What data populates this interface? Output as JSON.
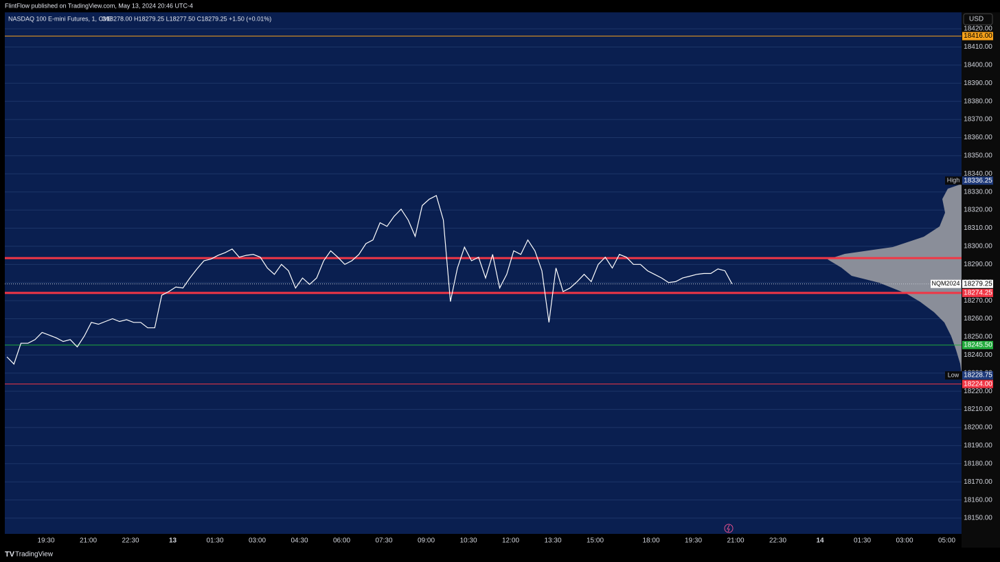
{
  "published": "FlintFlow published on TradingView.com, May 13, 2024 20:46 UTC-4",
  "brand": "TradingView",
  "chart_data": {
    "type": "line",
    "title": "NASDAQ 100 E-mini Futures, 1, CME",
    "ohlc": "O18278.00 H18279.25 L18277.50 C18279.25 +1.50 (+0.01%)",
    "currency": "USD",
    "x": [
      "18:00",
      "18:15",
      "18:30",
      "18:45",
      "19:00",
      "19:15",
      "19:30",
      "19:45",
      "20:00",
      "20:15",
      "20:30",
      "20:45",
      "21:00",
      "21:15",
      "21:30",
      "21:45",
      "22:00",
      "22:15",
      "22:30",
      "22:45",
      "23:00",
      "23:15",
      "23:30",
      "23:45",
      "00:00",
      "00:15",
      "00:30",
      "00:45",
      "01:00",
      "01:15",
      "01:30",
      "01:45",
      "02:00",
      "02:15",
      "02:30",
      "02:45",
      "03:00",
      "03:15",
      "03:30",
      "03:45",
      "04:00",
      "04:15",
      "04:30",
      "04:45",
      "05:00",
      "05:15",
      "05:30",
      "05:45",
      "06:00",
      "06:15",
      "06:30",
      "06:45",
      "07:00",
      "07:15",
      "07:30",
      "07:45",
      "08:00",
      "08:15",
      "08:30",
      "08:45",
      "09:00",
      "09:15",
      "09:30",
      "09:45",
      "10:00",
      "10:15",
      "10:30",
      "10:45",
      "11:00",
      "11:15",
      "11:30",
      "11:45",
      "12:00",
      "12:15",
      "12:30",
      "12:45",
      "13:00",
      "13:15",
      "13:30",
      "13:45",
      "14:00",
      "14:15",
      "14:30",
      "14:45",
      "15:00",
      "15:15",
      "15:30",
      "15:45",
      "16:00",
      "16:15",
      "16:30",
      "16:45",
      "18:00",
      "18:15",
      "18:30",
      "18:45",
      "19:00",
      "19:15",
      "19:30",
      "19:45",
      "20:00",
      "20:15",
      "20:30",
      "20:45"
    ],
    "series": [
      {
        "name": "NQM2024",
        "color": "#ffffff",
        "values": [
          18239,
          18235,
          18246.5,
          18246.5,
          18248.5,
          18252.5,
          18251,
          18249.5,
          18247.5,
          18248.5,
          18244.5,
          18250.5,
          18258,
          18257,
          18258.5,
          18260,
          18258.5,
          18259.5,
          18258,
          18258,
          18255,
          18255,
          18273,
          18275,
          18277.5,
          18277,
          18282.5,
          18287.5,
          18292,
          18293,
          18295,
          18296.5,
          18298.5,
          18294,
          18295,
          18295.5,
          18294,
          18288,
          18284.5,
          18290,
          18286.5,
          18277,
          18282.5,
          18279,
          18282.5,
          18292,
          18297.5,
          18294,
          18290,
          18292,
          18295.5,
          18301.5,
          18303.5,
          18313,
          18311,
          18316.5,
          18320.5,
          18314.5,
          18305.5,
          18322.5,
          18326,
          18328,
          18314.5,
          18269.5,
          18288,
          18299.5,
          18292,
          18294,
          18282.5,
          18295.5,
          18277,
          18284.5,
          18297.5,
          18295.5,
          18303.5,
          18297.5,
          18286.5,
          18258,
          18288,
          18275,
          18277,
          18280.5,
          18284.5,
          18280.5,
          18290,
          18294,
          18288,
          18295.5,
          18294,
          18290,
          18290,
          18286.5,
          18284.5,
          18282.5,
          18280,
          18280.5,
          18282.5,
          18283.5,
          18284.5,
          18285,
          18285,
          18287.5,
          18286.5,
          18279.25
        ]
      }
    ],
    "xticks": [
      "19:30",
      "21:00",
      "22:30",
      "13",
      "01:30",
      "03:00",
      "04:30",
      "06:00",
      "07:30",
      "09:00",
      "10:30",
      "12:00",
      "13:30",
      "15:00",
      "18:00",
      "19:30",
      "21:00",
      "22:30",
      "14",
      "01:30",
      "03:00",
      "05:00"
    ],
    "ylim": [
      18141.3,
      18429.1
    ],
    "yticks": [
      {
        "value": 18150,
        "label": "18150.00"
      },
      {
        "value": 18160,
        "label": "18160.00"
      },
      {
        "value": 18170,
        "label": "18170.00"
      },
      {
        "value": 18180,
        "label": "18180.00"
      },
      {
        "value": 18190,
        "label": "18190.00"
      },
      {
        "value": 18200,
        "label": "18200.00"
      },
      {
        "value": 18210,
        "label": "18210.00"
      },
      {
        "value": 18220,
        "label": "18220.00"
      },
      {
        "value": 18230,
        "label": "18230.00"
      },
      {
        "value": 18240,
        "label": "18240.00"
      },
      {
        "value": 18250,
        "label": "18250.00"
      },
      {
        "value": 18260,
        "label": "18260.00"
      },
      {
        "value": 18270,
        "label": "18270.00"
      },
      {
        "value": 18280,
        "label": "18280.00"
      },
      {
        "value": 18290,
        "label": "18290.00"
      },
      {
        "value": 18300,
        "label": "18300.00"
      },
      {
        "value": 18310,
        "label": "18310.00"
      },
      {
        "value": 18320,
        "label": "18320.00"
      },
      {
        "value": 18330,
        "label": "18330.00"
      },
      {
        "value": 18340,
        "label": "18340.00"
      },
      {
        "value": 18350,
        "label": "18350.00"
      },
      {
        "value": 18360,
        "label": "18360.00"
      },
      {
        "value": 18370,
        "label": "18370.00"
      },
      {
        "value": 18380,
        "label": "18380.00"
      },
      {
        "value": 18390,
        "label": "18390.00"
      },
      {
        "value": 18400,
        "label": "18400.00"
      },
      {
        "value": 18410,
        "label": "18410.00"
      },
      {
        "value": 18420,
        "label": "18420.00"
      }
    ],
    "grid": true,
    "levels": [
      {
        "value": 18416,
        "label": "18416.00",
        "color": "#f7a21b",
        "width": 1
      },
      {
        "value": 18293.5,
        "color": "#f23645",
        "width": 3
      },
      {
        "value": 18274.25,
        "label": "18274.25",
        "color": "#f23645",
        "width": 3
      },
      {
        "value": 18245.5,
        "label": "18245.50",
        "color": "#22ab3d",
        "width": 1
      },
      {
        "value": 18224,
        "label": "18224.00",
        "color": "#f23645",
        "width": 1
      }
    ],
    "last": {
      "value": 18279.25,
      "label": "18279.25",
      "name": "NQM2024"
    },
    "high": {
      "value": 18336.25,
      "label": "18336.25",
      "name": "High"
    },
    "low": {
      "value": 18228.75,
      "label": "18228.75",
      "name": "Low"
    }
  }
}
